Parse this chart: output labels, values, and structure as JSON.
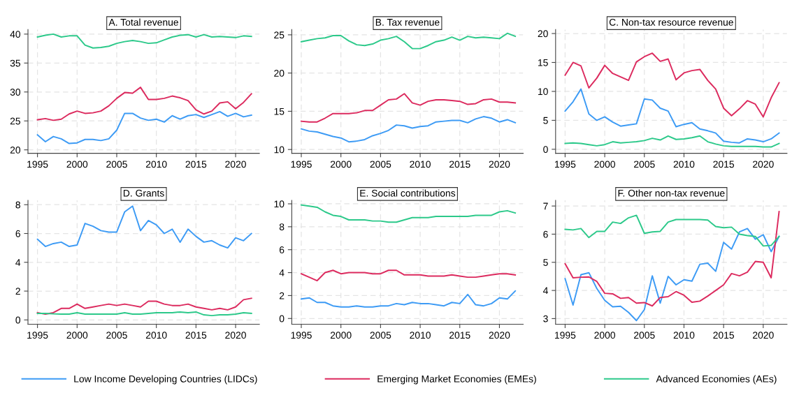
{
  "chart_data": [
    {
      "type": "line",
      "title": "A. Total revenue",
      "x": [
        1995,
        1996,
        1997,
        1998,
        1999,
        2000,
        2001,
        2002,
        2003,
        2004,
        2005,
        2006,
        2007,
        2008,
        2009,
        2010,
        2011,
        2012,
        2013,
        2014,
        2015,
        2016,
        2017,
        2018,
        2019,
        2020,
        2021,
        2022
      ],
      "xlim": [
        1993.8,
        2023
      ],
      "xticks": [
        1995,
        2000,
        2005,
        2010,
        2015,
        2020
      ],
      "ylim": [
        19.4,
        40.8
      ],
      "yticks": [
        20,
        25,
        30,
        35,
        40
      ],
      "grid": true,
      "legend": "bottom",
      "line_style": "solid",
      "series": [
        {
          "name": "Low Income Developing Countries (LIDCs)",
          "color": "#3d9bf5",
          "values": [
            22.6,
            21.4,
            22.3,
            21.9,
            21.1,
            21.2,
            21.8,
            21.8,
            21.6,
            21.9,
            23.4,
            26.3,
            26.3,
            25.5,
            25.1,
            25.3,
            24.8,
            25.9,
            25.3,
            25.9,
            26.1,
            25.6,
            26.1,
            26.6,
            25.8,
            26.3,
            25.7,
            26.0
          ]
        },
        {
          "name": "Emerging Market Economies (EMEs)",
          "color": "#dc2a5e",
          "values": [
            25.2,
            25.4,
            25.1,
            25.3,
            26.2,
            26.7,
            26.3,
            26.4,
            26.7,
            27.6,
            28.9,
            29.9,
            29.8,
            30.8,
            28.7,
            28.7,
            28.9,
            29.3,
            29.0,
            28.5,
            26.9,
            26.2,
            26.7,
            28.1,
            28.3,
            27.1,
            28.2,
            29.7
          ]
        },
        {
          "name": "Advanced Economies (AEs)",
          "color": "#2cc98a",
          "values": [
            39.5,
            39.8,
            40.0,
            39.5,
            39.7,
            39.7,
            38.1,
            37.6,
            37.7,
            37.9,
            38.4,
            38.7,
            38.9,
            38.7,
            38.4,
            38.5,
            39.0,
            39.5,
            39.8,
            39.9,
            39.5,
            39.9,
            39.5,
            39.6,
            39.5,
            39.4,
            39.7,
            39.6
          ]
        }
      ]
    },
    {
      "type": "line",
      "title": "B. Tax revenue",
      "x": [
        1995,
        1996,
        1997,
        1998,
        1999,
        2000,
        2001,
        2002,
        2003,
        2004,
        2005,
        2006,
        2007,
        2008,
        2009,
        2010,
        2011,
        2012,
        2013,
        2014,
        2015,
        2016,
        2017,
        2018,
        2019,
        2020,
        2021,
        2022
      ],
      "xlim": [
        1993.8,
        2023
      ],
      "xticks": [
        1995,
        2000,
        2005,
        2010,
        2015,
        2020
      ],
      "ylim": [
        9.5,
        25.7
      ],
      "yticks": [
        10,
        15,
        20,
        25
      ],
      "grid": true,
      "line_style": "solid",
      "series": [
        {
          "color": "#3d9bf5",
          "values": [
            12.7,
            12.4,
            12.3,
            12.0,
            11.7,
            11.5,
            11.0,
            11.1,
            11.3,
            11.8,
            12.1,
            12.5,
            13.2,
            13.1,
            12.8,
            13.0,
            13.1,
            13.6,
            13.7,
            13.8,
            13.8,
            13.5,
            14.0,
            14.3,
            14.1,
            13.6,
            13.9,
            13.5
          ]
        },
        {
          "color": "#dc2a5e",
          "values": [
            13.7,
            13.6,
            13.6,
            14.1,
            14.7,
            14.7,
            14.7,
            14.8,
            15.1,
            15.1,
            15.8,
            16.5,
            16.6,
            17.3,
            16.1,
            15.8,
            16.3,
            16.5,
            16.5,
            16.4,
            16.3,
            15.9,
            16.0,
            16.5,
            16.6,
            16.2,
            16.2,
            16.1
          ]
        },
        {
          "color": "#2cc98a",
          "values": [
            24.1,
            24.3,
            24.5,
            24.6,
            24.9,
            24.9,
            24.2,
            23.7,
            23.6,
            23.8,
            24.3,
            24.5,
            24.8,
            24.1,
            23.2,
            23.2,
            23.6,
            24.1,
            24.3,
            24.7,
            24.3,
            24.8,
            24.6,
            24.7,
            24.6,
            24.5,
            25.2,
            24.8
          ]
        }
      ]
    },
    {
      "type": "line",
      "title": "C. Non-tax resource revenue",
      "x": [
        1995,
        1996,
        1997,
        1998,
        1999,
        2000,
        2001,
        2002,
        2003,
        2004,
        2005,
        2006,
        2007,
        2008,
        2009,
        2010,
        2011,
        2012,
        2013,
        2014,
        2015,
        2016,
        2017,
        2018,
        2019,
        2020,
        2021,
        2022
      ],
      "xlim": [
        1993.8,
        2023
      ],
      "xticks": [
        1995,
        2000,
        2005,
        2010,
        2015,
        2020
      ],
      "ylim": [
        -0.7,
        20.7
      ],
      "yticks": [
        0,
        5,
        10,
        15,
        20
      ],
      "grid": true,
      "line_style": "solid",
      "series": [
        {
          "color": "#3d9bf5",
          "values": [
            6.6,
            8.2,
            10.4,
            6.1,
            5.0,
            5.6,
            4.7,
            4.0,
            4.2,
            4.4,
            8.7,
            8.5,
            7.1,
            6.6,
            3.9,
            4.3,
            4.6,
            3.5,
            3.2,
            2.8,
            1.4,
            1.2,
            1.1,
            1.8,
            1.6,
            1.3,
            1.8,
            2.8
          ]
        },
        {
          "color": "#dc2a5e",
          "values": [
            12.8,
            15.0,
            14.4,
            10.6,
            12.3,
            14.5,
            13.1,
            12.5,
            11.9,
            15.1,
            16.0,
            16.6,
            15.2,
            15.6,
            12.0,
            13.2,
            13.6,
            13.8,
            11.9,
            10.4,
            7.1,
            5.8,
            7.0,
            8.4,
            7.8,
            5.6,
            8.9,
            11.5
          ]
        },
        {
          "color": "#2cc98a",
          "values": [
            1.0,
            1.1,
            1.0,
            0.8,
            0.6,
            0.8,
            1.3,
            1.1,
            1.2,
            1.3,
            1.5,
            1.9,
            1.6,
            2.3,
            1.7,
            1.8,
            2.0,
            2.3,
            1.3,
            0.9,
            0.6,
            0.5,
            0.5,
            0.5,
            0.5,
            0.4,
            0.4,
            1.0
          ]
        }
      ]
    },
    {
      "type": "line",
      "title": "D. Grants",
      "x": [
        1995,
        1996,
        1997,
        1998,
        1999,
        2000,
        2001,
        2002,
        2003,
        2004,
        2005,
        2006,
        2007,
        2008,
        2009,
        2010,
        2011,
        2012,
        2013,
        2014,
        2015,
        2016,
        2017,
        2018,
        2019,
        2020,
        2021,
        2022
      ],
      "xlim": [
        1993.8,
        2023
      ],
      "xticks": [
        1995,
        2000,
        2005,
        2010,
        2015,
        2020
      ],
      "ylim": [
        -0.3,
        8.3
      ],
      "yticks": [
        0,
        2,
        4,
        6,
        8
      ],
      "grid": true,
      "line_style": "solid",
      "series": [
        {
          "color": "#3d9bf5",
          "values": [
            5.6,
            5.1,
            5.3,
            5.4,
            5.1,
            5.2,
            6.7,
            6.5,
            6.2,
            6.1,
            6.1,
            7.5,
            7.9,
            6.2,
            6.9,
            6.6,
            6.0,
            6.3,
            5.4,
            6.3,
            5.8,
            5.4,
            5.5,
            5.2,
            5.0,
            5.7,
            5.5,
            6.0
          ]
        },
        {
          "color": "#dc2a5e",
          "values": [
            0.5,
            0.4,
            0.5,
            0.8,
            0.8,
            1.1,
            0.8,
            0.9,
            1.0,
            1.1,
            1.0,
            1.1,
            1.0,
            0.9,
            1.3,
            1.3,
            1.1,
            1.0,
            1.0,
            1.1,
            0.9,
            0.8,
            0.7,
            0.8,
            0.7,
            0.9,
            1.4,
            1.5
          ]
        },
        {
          "color": "#2cc98a",
          "values": [
            0.45,
            0.45,
            0.42,
            0.4,
            0.4,
            0.5,
            0.4,
            0.4,
            0.4,
            0.4,
            0.4,
            0.5,
            0.4,
            0.4,
            0.45,
            0.5,
            0.5,
            0.5,
            0.55,
            0.5,
            0.55,
            0.35,
            0.3,
            0.35,
            0.35,
            0.4,
            0.5,
            0.45
          ]
        }
      ]
    },
    {
      "type": "line",
      "title": "E. Social contributions",
      "x": [
        1995,
        1996,
        1997,
        1998,
        1999,
        2000,
        2001,
        2002,
        2003,
        2004,
        2005,
        2006,
        2007,
        2008,
        2009,
        2010,
        2011,
        2012,
        2013,
        2014,
        2015,
        2016,
        2017,
        2018,
        2019,
        2020,
        2021,
        2022
      ],
      "xlim": [
        1993.8,
        2023
      ],
      "xticks": [
        1995,
        2000,
        2005,
        2010,
        2015,
        2020
      ],
      "ylim": [
        -0.5,
        10.3
      ],
      "yticks": [
        0,
        2,
        4,
        6,
        8,
        10
      ],
      "grid": true,
      "line_style": "solid",
      "series": [
        {
          "color": "#3d9bf5",
          "values": [
            1.7,
            1.8,
            1.4,
            1.4,
            1.1,
            1.0,
            1.0,
            1.1,
            1.0,
            1.0,
            1.1,
            1.1,
            1.3,
            1.2,
            1.4,
            1.3,
            1.3,
            1.2,
            1.1,
            1.4,
            1.3,
            2.1,
            1.2,
            1.1,
            1.3,
            1.8,
            1.7,
            2.4
          ]
        },
        {
          "color": "#dc2a5e",
          "values": [
            3.9,
            3.6,
            3.3,
            4.0,
            4.2,
            3.9,
            4.0,
            4.0,
            4.0,
            3.9,
            3.9,
            4.2,
            4.2,
            3.8,
            3.8,
            3.8,
            3.7,
            3.7,
            3.7,
            3.8,
            3.7,
            3.6,
            3.6,
            3.7,
            3.8,
            3.9,
            3.9,
            3.8
          ]
        },
        {
          "color": "#2cc98a",
          "values": [
            9.9,
            9.8,
            9.7,
            9.3,
            9.0,
            8.9,
            8.6,
            8.6,
            8.6,
            8.5,
            8.5,
            8.4,
            8.4,
            8.6,
            8.8,
            8.8,
            8.8,
            8.9,
            8.9,
            8.9,
            8.9,
            8.9,
            9.0,
            9.0,
            9.0,
            9.3,
            9.4,
            9.2
          ]
        }
      ]
    },
    {
      "type": "line",
      "title": "F. Other non-tax revenue",
      "x": [
        1995,
        1996,
        1997,
        1998,
        1999,
        2000,
        2001,
        2002,
        2003,
        2004,
        2005,
        2006,
        2007,
        2008,
        2009,
        2010,
        2011,
        2012,
        2013,
        2014,
        2015,
        2016,
        2017,
        2018,
        2019,
        2020,
        2021,
        2022
      ],
      "xlim": [
        1993.8,
        2023
      ],
      "xticks": [
        1995,
        2000,
        2005,
        2010,
        2015,
        2020
      ],
      "ylim": [
        2.8,
        7.2
      ],
      "yticks": [
        3,
        4,
        5,
        6,
        7
      ],
      "grid": true,
      "line_style": "solid",
      "series": [
        {
          "color": "#3d9bf5",
          "values": [
            4.42,
            3.48,
            4.56,
            4.63,
            4.07,
            3.65,
            3.42,
            3.44,
            3.22,
            2.93,
            3.32,
            4.52,
            3.55,
            4.5,
            4.2,
            4.38,
            4.33,
            4.93,
            4.97,
            4.68,
            5.71,
            5.47,
            6.08,
            6.2,
            5.82,
            5.98,
            5.38,
            5.92
          ]
        },
        {
          "color": "#dc2a5e",
          "values": [
            4.95,
            4.45,
            4.47,
            4.48,
            4.32,
            3.9,
            3.88,
            3.72,
            3.75,
            3.55,
            3.57,
            3.45,
            3.75,
            3.78,
            3.96,
            3.83,
            3.58,
            3.62,
            3.8,
            4.0,
            4.2,
            4.6,
            4.52,
            4.65,
            5.03,
            5.0,
            4.45,
            6.8
          ]
        },
        {
          "color": "#2cc98a",
          "values": [
            6.17,
            6.15,
            6.2,
            5.88,
            6.1,
            6.1,
            6.43,
            6.38,
            6.58,
            6.67,
            6.03,
            6.08,
            6.1,
            6.43,
            6.52,
            6.52,
            6.52,
            6.52,
            6.5,
            6.27,
            6.23,
            6.25,
            6.0,
            5.95,
            5.92,
            5.58,
            5.6,
            5.92
          ]
        }
      ]
    }
  ]
}
